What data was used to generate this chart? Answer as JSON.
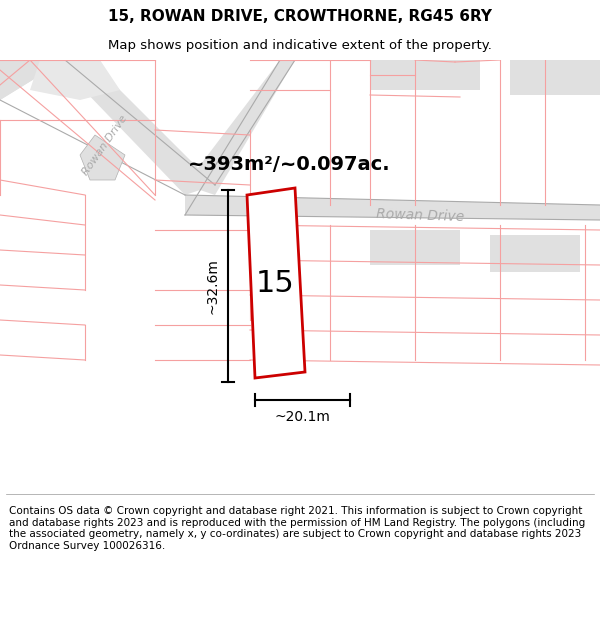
{
  "title_line1": "15, ROWAN DRIVE, CROWTHORNE, RG45 6RY",
  "title_line2": "Map shows position and indicative extent of the property.",
  "area_text": "~393m²/~0.097ac.",
  "road_label": "Rowan Drive",
  "road_label_left": "Rowan Drive",
  "number_label": "15",
  "dim_height": "~32.6m",
  "dim_width": "~20.1m",
  "footer_text": "Contains OS data © Crown copyright and database right 2021. This information is subject to Crown copyright and database rights 2023 and is reproduced with the permission of HM Land Registry. The polygons (including the associated geometry, namely x, y co-ordinates) are subject to Crown copyright and database rights 2023 Ordnance Survey 100026316.",
  "bg_color": "#ffffff",
  "map_bg": "#ffffff",
  "road_gray": "#e0e0e0",
  "road_gray2": "#d0d0d0",
  "plot_line_color": "#cc0000",
  "pink_line": "#f5a0a0",
  "gray_line": "#aaaaaa",
  "title_fontsize": 11,
  "subtitle_fontsize": 9.5,
  "footer_fontsize": 7.5
}
